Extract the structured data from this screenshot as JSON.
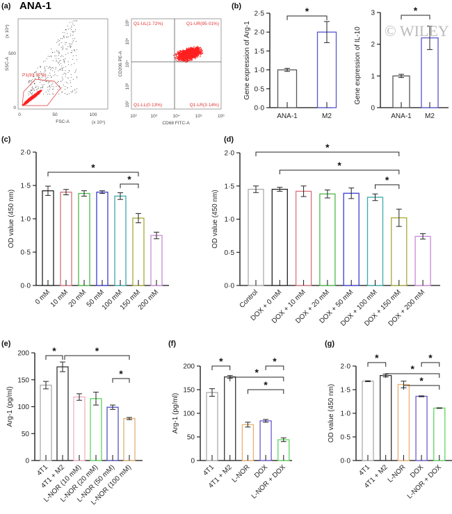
{
  "figure_title": "ANA-1",
  "watermark": "© WILEY",
  "flow": {
    "label": "(a)",
    "left": {
      "xlabel": "FSC-A",
      "ylabel": "SSC-A",
      "xticks": [
        "0",
        "50",
        "100"
      ],
      "yticks": [
        "0",
        "500"
      ],
      "xscale": "(x 10⁵)",
      "yscale": "(x 10⁴)",
      "gate": "P1(93·97%)"
    },
    "right": {
      "xlabel": "CD68 FITC-A",
      "ylabel": "CD206 PE-A",
      "ticks": [
        "10²",
        "10³",
        "10⁴",
        "10⁵",
        "10⁶"
      ],
      "quadrants": {
        "UL": "Q1-UL(1·72%)",
        "UR": "Q1-UR(95·01%)",
        "LL": "Q1-LL(0·13%)",
        "LR": "Q1-LR(3·14%)"
      },
      "colors": {
        "dots": "#ff2020"
      }
    }
  },
  "chart_data": [
    {
      "id": "b1",
      "panel": "(b)",
      "type": "bar",
      "ylabel": "Gene expression of Arg-1",
      "ylim": [
        0,
        2.5
      ],
      "yticks": [
        "0·0",
        "0·5",
        "1·0",
        "1·5",
        "2·0",
        "2·5"
      ],
      "tickvals": [
        0,
        0.5,
        1,
        1.5,
        2,
        2.5
      ],
      "categories": [
        "ANA-1",
        "M2"
      ],
      "values": [
        1.0,
        2.0
      ],
      "errors": [
        0.04,
        0.28
      ],
      "colors": [
        "#555555",
        "#5555cc"
      ],
      "rotate": false,
      "significance": [
        [
          0,
          1
        ]
      ]
    },
    {
      "id": "b2",
      "panel": "",
      "type": "bar",
      "ylabel": "Gene expression of IL-10",
      "ylim": [
        0,
        3
      ],
      "yticks": [
        "0",
        "1",
        "2",
        "3"
      ],
      "tickvals": [
        0,
        1,
        2,
        3
      ],
      "categories": [
        "ANA-1",
        "M2"
      ],
      "values": [
        1.0,
        2.2
      ],
      "errors": [
        0.05,
        0.37
      ],
      "colors": [
        "#555555",
        "#5555cc"
      ],
      "rotate": false,
      "significance": [
        [
          0,
          1
        ]
      ]
    },
    {
      "id": "c",
      "panel": "(c)",
      "type": "bar",
      "ylabel": "OD value (450 nm)",
      "ylim": [
        0,
        2
      ],
      "yticks": [
        "0·0",
        "0·5",
        "1·0",
        "1·5",
        "2·0"
      ],
      "tickvals": [
        0,
        0.5,
        1,
        1.5,
        2
      ],
      "categories": [
        "0 mM",
        "10 mM",
        "20 mM",
        "50 mM",
        "100 mM",
        "150 mM",
        "200 mM"
      ],
      "values": [
        1.42,
        1.4,
        1.38,
        1.4,
        1.34,
        1.01,
        0.75
      ],
      "errors": [
        0.07,
        0.04,
        0.04,
        0.02,
        0.05,
        0.07,
        0.05
      ],
      "colors": [
        "#222222",
        "#d9707a",
        "#4cb84c",
        "#3b3bd0",
        "#3aa8a8",
        "#a8a83a",
        "#c78ad6"
      ],
      "rotate": true,
      "significance": [
        [
          0,
          5
        ],
        [
          4,
          5
        ]
      ]
    },
    {
      "id": "d",
      "panel": "(d)",
      "type": "bar",
      "ylabel": "OD value (450 nm)",
      "ylim": [
        0,
        2
      ],
      "yticks": [
        "0·0",
        "0·5",
        "1·0",
        "1·5",
        "2·0"
      ],
      "tickvals": [
        0,
        0.5,
        1,
        1.5,
        2
      ],
      "categories": [
        "Control",
        "DOX + 0 mM",
        "DOX + 10 mM",
        "DOX + 20 mM",
        "DOX + 50 mM",
        "DOX + 100 mM",
        "DOX + 150 mM",
        "DOX + 200 mM"
      ],
      "values": [
        1.45,
        1.45,
        1.42,
        1.38,
        1.39,
        1.33,
        1.02,
        0.74
      ],
      "errors": [
        0.05,
        0.03,
        0.08,
        0.06,
        0.08,
        0.05,
        0.13,
        0.04
      ],
      "colors": [
        "#aaaaaa",
        "#222222",
        "#d9707a",
        "#4cb84c",
        "#3b3bd0",
        "#3aa8a8",
        "#a8a83a",
        "#c78ad6"
      ],
      "rotate": true,
      "significance": [
        [
          0,
          6
        ],
        [
          1,
          6
        ],
        [
          5,
          6
        ]
      ]
    },
    {
      "id": "e",
      "panel": "(e)",
      "type": "bar",
      "ylabel": "Arg-1 (pg/ml)",
      "ylim": [
        0,
        200
      ],
      "yticks": [
        "0",
        "50",
        "100",
        "150",
        "200"
      ],
      "tickvals": [
        0,
        50,
        100,
        150,
        200
      ],
      "categories": [
        "4T1",
        "4T1 + M2",
        "L-NOR (10 mM)",
        "L-NOR (20 mM)",
        "L-NOR (50 mM)",
        "L-NOR (100 mM)"
      ],
      "values": [
        140,
        174,
        118,
        115,
        99,
        78
      ],
      "errors": [
        7,
        9,
        6,
        12,
        4,
        2
      ],
      "colors": [
        "#aaaaaa",
        "#333333",
        "#f0b0c0",
        "#5cd65c",
        "#5050c0",
        "#e0b070"
      ],
      "rotate": true,
      "significance": [
        [
          0,
          1
        ],
        [
          1,
          5
        ],
        [
          4,
          5
        ]
      ]
    },
    {
      "id": "f",
      "panel": "(f)",
      "type": "bar",
      "ylabel": "Arg-1 (pg/ml)",
      "ylim": [
        0,
        200
      ],
      "yticks": [
        "0",
        "50",
        "100",
        "150",
        "200"
      ],
      "tickvals": [
        0,
        50,
        100,
        150,
        200
      ],
      "categories": [
        "4T1",
        "4T1 + M2",
        "L-NOR",
        "DOX",
        "L-NOR + DOX"
      ],
      "values": [
        144,
        177,
        76,
        84,
        44
      ],
      "errors": [
        8,
        3,
        5,
        3,
        4
      ],
      "colors": [
        "#aaaaaa",
        "#333333",
        "#e8b070",
        "#6a5acd",
        "#5cd65c"
      ],
      "rotate": true,
      "significance": [
        [
          0,
          1
        ],
        [
          1,
          4
        ],
        [
          2,
          4
        ],
        [
          3,
          4
        ]
      ]
    },
    {
      "id": "g",
      "panel": "(g)",
      "type": "bar",
      "ylabel": "OD value (450 nm)",
      "ylim": [
        0,
        2
      ],
      "yticks": [
        "0·0",
        "0·5",
        "1·0",
        "1·5",
        "2·0"
      ],
      "tickvals": [
        0,
        0.5,
        1,
        1.5,
        2
      ],
      "categories": [
        "4T1",
        "4T1 + M2",
        "L-NOR",
        "DOX",
        "L-NOR + DOX"
      ],
      "values": [
        1.68,
        1.8,
        1.61,
        1.36,
        1.11
      ],
      "errors": [
        0.01,
        0.03,
        0.07,
        0.01,
        0.005
      ],
      "colors": [
        "#aaaaaa",
        "#333333",
        "#e8b070",
        "#6a5acd",
        "#5cd65c"
      ],
      "rotate": true,
      "significance": [
        [
          0,
          1
        ],
        [
          1,
          4
        ],
        [
          2,
          4
        ],
        [
          3,
          4
        ]
      ]
    }
  ],
  "significance_mark": "*"
}
